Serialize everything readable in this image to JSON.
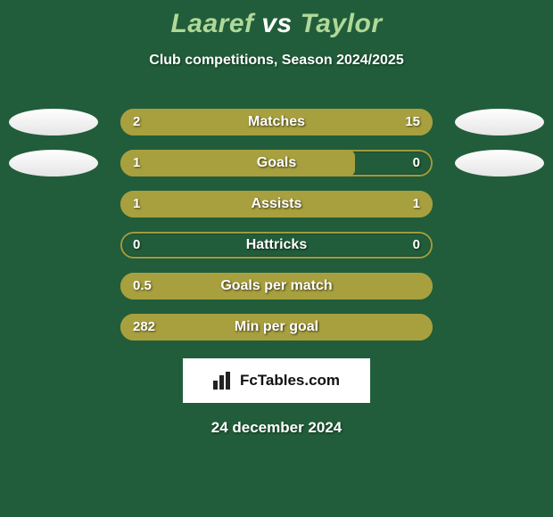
{
  "title": {
    "playerA": "Laaref",
    "vs": "vs",
    "playerB": "Taylor",
    "colorA": "#b0d898",
    "colorVs": "#ffffff",
    "colorB": "#b0d898",
    "fontsize": 30
  },
  "subtitle": "Club competitions, Season 2024/2025",
  "bar_style": {
    "track_width": 350,
    "track_height": 30,
    "border_radius": 16,
    "border_color": "#a19a3f",
    "fill_color": "#a8a03e",
    "label_fontsize": 16,
    "value_fontsize": 15,
    "text_color": "#ffffff"
  },
  "badges": {
    "left": {
      "visible_rows": [
        0,
        1
      ],
      "fill": "#f5f5f5"
    },
    "right": {
      "visible_rows": [
        0,
        1
      ],
      "fill": "#f5f5f5"
    }
  },
  "stats": [
    {
      "metric": "Matches",
      "a": "2",
      "b": "15",
      "a_val": 2,
      "b_val": 15,
      "fill": "split"
    },
    {
      "metric": "Goals",
      "a": "1",
      "b": "0",
      "a_val": 1,
      "b_val": 0,
      "fill": "left_full_partial",
      "a_width_pct": 75
    },
    {
      "metric": "Assists",
      "a": "1",
      "b": "1",
      "a_val": 1,
      "b_val": 1,
      "fill": "split"
    },
    {
      "metric": "Hattricks",
      "a": "0",
      "b": "0",
      "a_val": 0,
      "b_val": 0,
      "fill": "none"
    },
    {
      "metric": "Goals per match",
      "a": "0.5",
      "b": "",
      "a_val": 0.5,
      "b_val": 0,
      "fill": "full"
    },
    {
      "metric": "Min per goal",
      "a": "282",
      "b": "",
      "a_val": 282,
      "b_val": 0,
      "fill": "full"
    }
  ],
  "branding": {
    "text": "FcTables.com",
    "bg": "#ffffff",
    "fg": "#111111"
  },
  "date": "24 december 2024",
  "background_color": "#215d3a"
}
